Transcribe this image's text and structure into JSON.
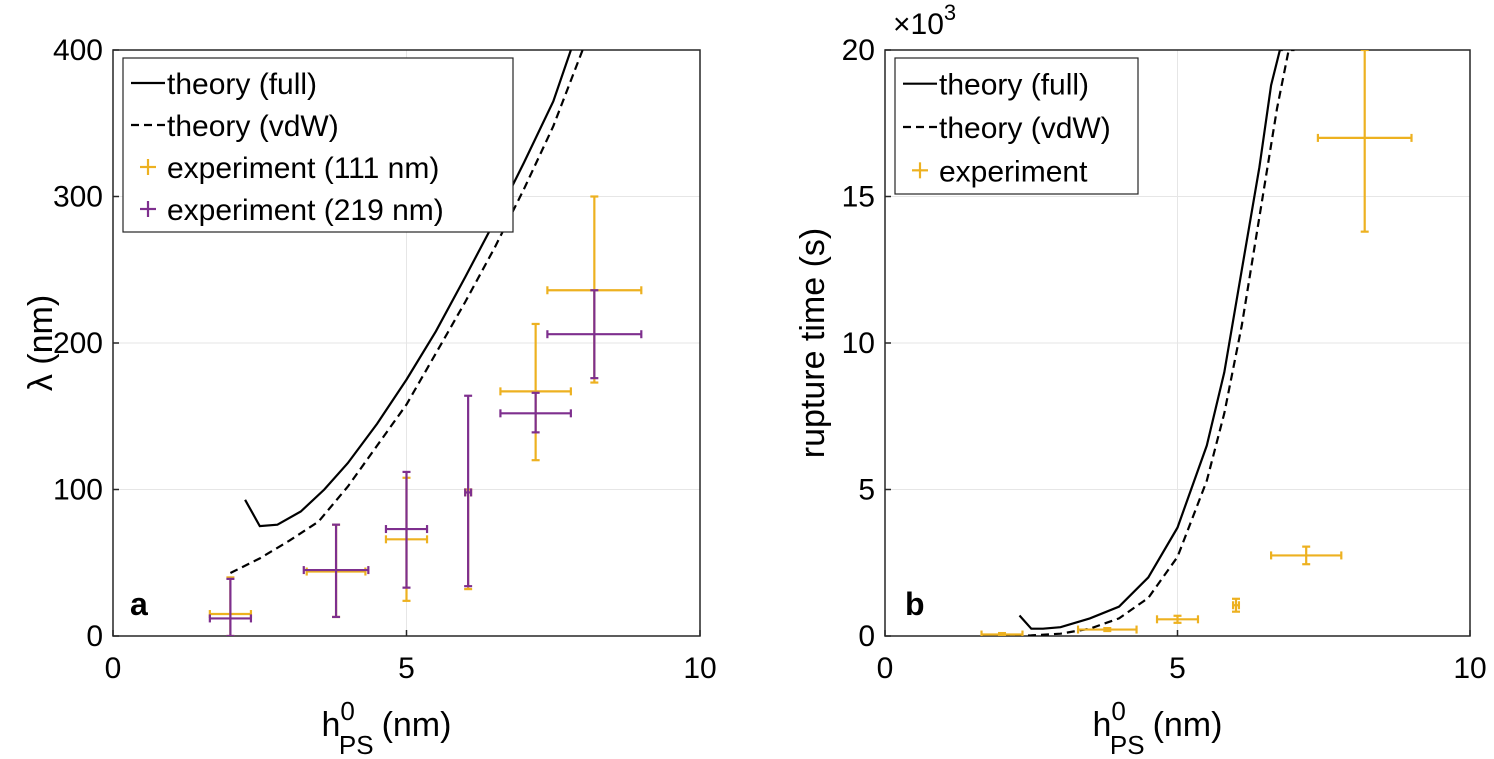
{
  "chart_data": [
    {
      "type": "line",
      "panel": "a",
      "xlabel": "h",
      "xlabel_sup": "0",
      "xlabel_sub": "PS",
      "xlabel_unit": "(nm)",
      "ylabel": "λ (nm)",
      "xlim": [
        0,
        10
      ],
      "ylim": [
        0,
        400
      ],
      "xticks": [
        0,
        5,
        10
      ],
      "yticks": [
        0,
        100,
        200,
        300,
        400
      ],
      "grid": true,
      "legend_position": "top-left",
      "series": [
        {
          "name": "theory (full)",
          "style": "solid",
          "color": "#000000",
          "x": [
            2.25,
            2.5,
            2.8,
            3.2,
            3.6,
            4.0,
            4.5,
            5.0,
            5.5,
            6.0,
            6.5,
            7.0,
            7.5,
            7.8
          ],
          "y": [
            93,
            75,
            76,
            85,
            100,
            118,
            145,
            175,
            208,
            245,
            283,
            323,
            365,
            400
          ]
        },
        {
          "name": "theory (vdW)",
          "style": "dashed",
          "color": "#000000",
          "x": [
            2.0,
            2.5,
            3.0,
            3.5,
            4.0,
            4.5,
            5.0,
            5.5,
            6.0,
            6.5,
            7.0,
            7.5,
            8.0
          ],
          "y": [
            43,
            53,
            65,
            78,
            102,
            130,
            158,
            193,
            228,
            265,
            305,
            348,
            400
          ]
        },
        {
          "name": "experiment (111 nm)",
          "style": "errorbar",
          "color": "#EDB120",
          "points": [
            {
              "x": 2.0,
              "y": 15,
              "xerr": 0.35,
              "yerr_low": 15,
              "yerr_high": 25
            },
            {
              "x": 3.8,
              "y": 44,
              "xerr": 0.5,
              "yerr_low": 31,
              "yerr_high": 32
            },
            {
              "x": 5.0,
              "y": 66,
              "xerr": 0.35,
              "yerr_low": 42,
              "yerr_high": 42
            },
            {
              "x": 6.05,
              "y": 98,
              "xerr": 0.05,
              "yerr_low": 66,
              "yerr_high": 2
            },
            {
              "x": 7.2,
              "y": 167,
              "xerr": 0.6,
              "yerr_low": 47,
              "yerr_high": 46
            },
            {
              "x": 8.2,
              "y": 236,
              "xerr": 0.8,
              "yerr_low": 63,
              "yerr_high": 64
            }
          ]
        },
        {
          "name": "experiment (219 nm)",
          "style": "errorbar",
          "color": "#7E2F8E",
          "points": [
            {
              "x": 2.0,
              "y": 12,
              "xerr": 0.35,
              "yerr_low": 12,
              "yerr_high": 27
            },
            {
              "x": 3.8,
              "y": 45,
              "xerr": 0.55,
              "yerr_low": 32,
              "yerr_high": 31
            },
            {
              "x": 5.0,
              "y": 73,
              "xerr": 0.35,
              "yerr_low": 40,
              "yerr_high": 39
            },
            {
              "x": 6.05,
              "y": 98,
              "xerr": 0.05,
              "yerr_low": 64,
              "yerr_high": 66
            },
            {
              "x": 7.2,
              "y": 152,
              "xerr": 0.6,
              "yerr_low": 13,
              "yerr_high": 14
            },
            {
              "x": 8.2,
              "y": 206,
              "xerr": 0.8,
              "yerr_low": 30,
              "yerr_high": 30
            }
          ]
        }
      ]
    },
    {
      "type": "line",
      "panel": "b",
      "xlabel": "h",
      "xlabel_sup": "0",
      "xlabel_sub": "PS",
      "xlabel_unit": "(nm)",
      "ylabel": "rupture time (s)",
      "y_multiplier": "×10",
      "y_multiplier_exp": "3",
      "xlim": [
        0,
        10
      ],
      "ylim": [
        0,
        20
      ],
      "xticks": [
        0,
        5,
        10
      ],
      "yticks": [
        0,
        5,
        10,
        15,
        20
      ],
      "grid": true,
      "legend_position": "top-left",
      "series": [
        {
          "name": "theory (full)",
          "style": "solid",
          "color": "#000000",
          "x": [
            2.3,
            2.5,
            2.7,
            3.0,
            3.5,
            4.0,
            4.5,
            5.0,
            5.5,
            5.8,
            6.1,
            6.4,
            6.6,
            6.75,
            6.8
          ],
          "y": [
            0.7,
            0.25,
            0.25,
            0.3,
            0.6,
            1.0,
            2.0,
            3.7,
            6.5,
            9.0,
            12.5,
            16.0,
            18.8,
            20.0,
            20.0
          ]
        },
        {
          "name": "theory (vdW)",
          "style": "dashed",
          "color": "#000000",
          "x": [
            2.0,
            2.5,
            3.0,
            3.5,
            4.0,
            4.5,
            5.0,
            5.5,
            5.8,
            6.1,
            6.4,
            6.7,
            6.9,
            7.0
          ],
          "y": [
            0.0,
            0.02,
            0.08,
            0.25,
            0.6,
            1.3,
            2.7,
            5.3,
            7.6,
            10.6,
            14.3,
            18.0,
            20.0,
            20.0
          ]
        },
        {
          "name": "experiment",
          "style": "errorbar",
          "color": "#EDB120",
          "points": [
            {
              "x": 2.0,
              "y": 0.05,
              "xerr": 0.35,
              "yerr_low": 0.05,
              "yerr_high": 0.05
            },
            {
              "x": 3.8,
              "y": 0.22,
              "xerr": 0.5,
              "yerr_low": 0.05,
              "yerr_high": 0.05
            },
            {
              "x": 5.0,
              "y": 0.57,
              "xerr": 0.35,
              "yerr_low": 0.12,
              "yerr_high": 0.12
            },
            {
              "x": 6.0,
              "y": 1.05,
              "xerr": 0.05,
              "yerr_low": 0.22,
              "yerr_high": 0.22
            },
            {
              "x": 7.2,
              "y": 2.75,
              "xerr": 0.6,
              "yerr_low": 0.3,
              "yerr_high": 0.3
            },
            {
              "x": 8.2,
              "y": 17.0,
              "xerr": 0.8,
              "yerr_low": 3.2,
              "yerr_high": 3.0
            }
          ]
        }
      ]
    }
  ]
}
